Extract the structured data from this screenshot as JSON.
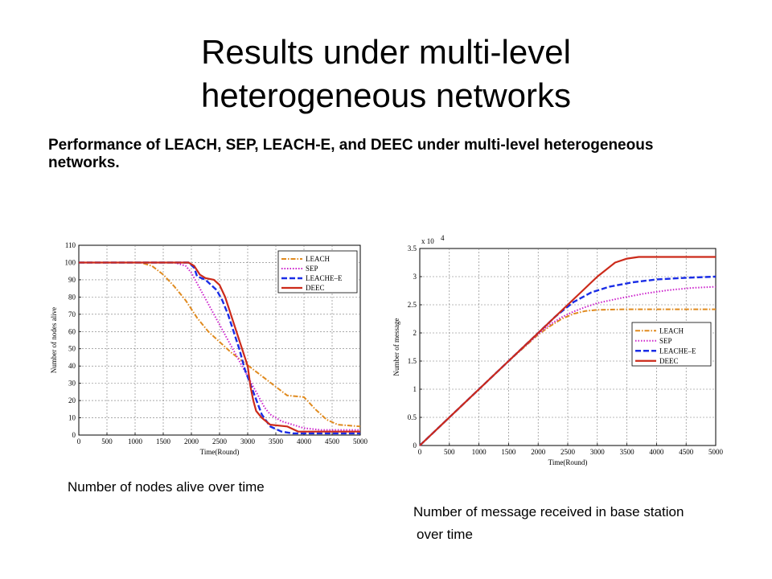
{
  "title_line1": "Results under multi-level",
  "title_line2": "heterogeneous networks",
  "subtitle": "Performance of LEACH, SEP, LEACH-E, and DEEC under multi-level heterogeneous networks.",
  "captions": {
    "chart1": "Number of nodes alive over time",
    "chart2_line1": "Number of message received in base station",
    "chart2_line2": "over time"
  },
  "chart_data": [
    {
      "type": "line",
      "xlabel": "Time(Round)",
      "ylabel": "Number of nodes alive",
      "xlim": [
        0,
        5000
      ],
      "ylim": [
        0,
        110
      ],
      "xticks": [
        0,
        500,
        1000,
        1500,
        2000,
        2500,
        3000,
        3500,
        4000,
        4500,
        5000
      ],
      "yticks": [
        0,
        10,
        20,
        30,
        40,
        50,
        60,
        70,
        80,
        90,
        100,
        110
      ],
      "grid": true,
      "legend_position": "top-right",
      "series": [
        {
          "name": "LEACH",
          "color": "#e08a1e",
          "dash": "6 2 1.5 2",
          "width": 2,
          "points": [
            [
              0,
              100
            ],
            [
              1100,
              100
            ],
            [
              1300,
              98
            ],
            [
              1500,
              93
            ],
            [
              1700,
              86
            ],
            [
              1900,
              78
            ],
            [
              2100,
              68
            ],
            [
              2300,
              60
            ],
            [
              2500,
              54
            ],
            [
              2700,
              48
            ],
            [
              2900,
              43
            ],
            [
              3100,
              38
            ],
            [
              3300,
              33
            ],
            [
              3500,
              28
            ],
            [
              3700,
              23
            ],
            [
              4000,
              22
            ],
            [
              4200,
              15
            ],
            [
              4400,
              9
            ],
            [
              4600,
              6
            ],
            [
              5000,
              5
            ]
          ]
        },
        {
          "name": "SEP",
          "color": "#cc22cc",
          "dash": "1.5 2",
          "width": 2,
          "points": [
            [
              0,
              100
            ],
            [
              1700,
              100
            ],
            [
              1900,
              98
            ],
            [
              2000,
              94
            ],
            [
              2100,
              88
            ],
            [
              2200,
              82
            ],
            [
              2300,
              76
            ],
            [
              2400,
              70
            ],
            [
              2500,
              64
            ],
            [
              2600,
              58
            ],
            [
              2700,
              52
            ],
            [
              2800,
              46
            ],
            [
              2900,
              40
            ],
            [
              3000,
              34
            ],
            [
              3100,
              28
            ],
            [
              3200,
              22
            ],
            [
              3300,
              16
            ],
            [
              3400,
              12
            ],
            [
              3600,
              8
            ],
            [
              3800,
              6
            ],
            [
              4000,
              4
            ],
            [
              4300,
              3
            ],
            [
              5000,
              3
            ]
          ]
        },
        {
          "name": "LEACHE–E",
          "color": "#1a2de6",
          "dash": "7 3",
          "width": 2.4,
          "points": [
            [
              0,
              100
            ],
            [
              1950,
              100
            ],
            [
              2050,
              97
            ],
            [
              2100,
              92
            ],
            [
              2250,
              90
            ],
            [
              2350,
              87
            ],
            [
              2450,
              84
            ],
            [
              2550,
              78
            ],
            [
              2650,
              70
            ],
            [
              2750,
              60
            ],
            [
              2850,
              50
            ],
            [
              2950,
              38
            ],
            [
              3100,
              25
            ],
            [
              3250,
              12
            ],
            [
              3400,
              5
            ],
            [
              3600,
              2
            ],
            [
              3800,
              1
            ],
            [
              4000,
              1
            ],
            [
              5000,
              1
            ]
          ]
        },
        {
          "name": "DEEC",
          "color": "#cc2a1a",
          "dash": "",
          "width": 2.2,
          "points": [
            [
              0,
              100
            ],
            [
              1950,
              100
            ],
            [
              2050,
              98
            ],
            [
              2150,
              93
            ],
            [
              2250,
              91
            ],
            [
              2400,
              90
            ],
            [
              2500,
              87
            ],
            [
              2600,
              80
            ],
            [
              2700,
              70
            ],
            [
              2800,
              60
            ],
            [
              2900,
              50
            ],
            [
              3000,
              40
            ],
            [
              3050,
              28
            ],
            [
              3100,
              20
            ],
            [
              3150,
              14
            ],
            [
              3250,
              10
            ],
            [
              3400,
              6
            ],
            [
              3700,
              5
            ],
            [
              3900,
              2
            ],
            [
              4100,
              2
            ],
            [
              5000,
              2
            ]
          ]
        }
      ]
    },
    {
      "type": "line",
      "xlabel": "Time(Round)",
      "ylabel": "Number of message",
      "multiplier_label": "x 10",
      "multiplier_exp": "4",
      "xlim": [
        0,
        5000
      ],
      "ylim": [
        0,
        3.5
      ],
      "xticks": [
        0,
        500,
        1000,
        1500,
        2000,
        2500,
        3000,
        3500,
        4000,
        4500,
        5000
      ],
      "yticks": [
        0,
        0.5,
        1,
        1.5,
        2,
        2.5,
        3,
        3.5
      ],
      "grid": true,
      "legend_position": "center-right",
      "series": [
        {
          "name": "LEACH",
          "color": "#e08a1e",
          "dash": "6 2 1.5 2",
          "width": 2,
          "points": [
            [
              0,
              0
            ],
            [
              1500,
              1.5
            ],
            [
              1800,
              1.78
            ],
            [
              2000,
              1.97
            ],
            [
              2200,
              2.12
            ],
            [
              2400,
              2.25
            ],
            [
              2600,
              2.34
            ],
            [
              2800,
              2.39
            ],
            [
              3000,
              2.41
            ],
            [
              3500,
              2.42
            ],
            [
              5000,
              2.42
            ]
          ]
        },
        {
          "name": "SEP",
          "color": "#cc22cc",
          "dash": "1.5 2",
          "width": 2,
          "points": [
            [
              0,
              0
            ],
            [
              1500,
              1.5
            ],
            [
              1800,
              1.79
            ],
            [
              2000,
              1.98
            ],
            [
              2200,
              2.15
            ],
            [
              2400,
              2.28
            ],
            [
              2600,
              2.38
            ],
            [
              2800,
              2.46
            ],
            [
              3000,
              2.53
            ],
            [
              3400,
              2.62
            ],
            [
              3800,
              2.7
            ],
            [
              4200,
              2.76
            ],
            [
              4600,
              2.8
            ],
            [
              5000,
              2.82
            ]
          ]
        },
        {
          "name": "LEACHE–E",
          "color": "#1a2de6",
          "dash": "7 3",
          "width": 2.4,
          "points": [
            [
              0,
              0
            ],
            [
              1500,
              1.5
            ],
            [
              2000,
              2.0
            ],
            [
              2300,
              2.3
            ],
            [
              2600,
              2.55
            ],
            [
              2900,
              2.72
            ],
            [
              3200,
              2.82
            ],
            [
              3600,
              2.9
            ],
            [
              4000,
              2.95
            ],
            [
              4500,
              2.98
            ],
            [
              5000,
              3.0
            ]
          ]
        },
        {
          "name": "DEEC",
          "color": "#cc2a1a",
          "dash": "",
          "width": 2.2,
          "points": [
            [
              0,
              0
            ],
            [
              1500,
              1.5
            ],
            [
              2000,
              2.0
            ],
            [
              2500,
              2.5
            ],
            [
              3000,
              3.0
            ],
            [
              3300,
              3.25
            ],
            [
              3500,
              3.32
            ],
            [
              3700,
              3.35
            ],
            [
              5000,
              3.35
            ]
          ]
        }
      ]
    }
  ]
}
